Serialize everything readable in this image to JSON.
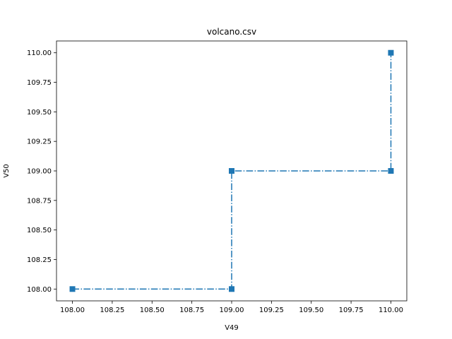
{
  "chart_data": {
    "type": "line",
    "title": "volcano.csv",
    "xlabel": "V49",
    "ylabel": "V50",
    "xlim": [
      107.9,
      110.1
    ],
    "ylim": [
      107.9,
      110.1
    ],
    "xticks": [
      108.0,
      108.25,
      108.5,
      108.75,
      109.0,
      109.25,
      109.5,
      109.75,
      110.0
    ],
    "yticks": [
      108.0,
      108.25,
      108.5,
      108.75,
      109.0,
      109.25,
      109.5,
      109.75,
      110.0
    ],
    "xtick_labels": [
      "108.00",
      "108.25",
      "108.50",
      "108.75",
      "109.00",
      "109.25",
      "109.50",
      "109.75",
      "110.00"
    ],
    "ytick_labels": [
      "108.00",
      "108.25",
      "108.50",
      "108.75",
      "109.00",
      "109.25",
      "109.50",
      "109.75",
      "110.00"
    ],
    "grid": false,
    "series": [
      {
        "x": [
          108,
          109,
          109,
          110,
          110
        ],
        "y": [
          108,
          108,
          109,
          109,
          110
        ],
        "color": "#1f77b4",
        "linestyle": "dashdot",
        "marker": "square"
      }
    ]
  }
}
